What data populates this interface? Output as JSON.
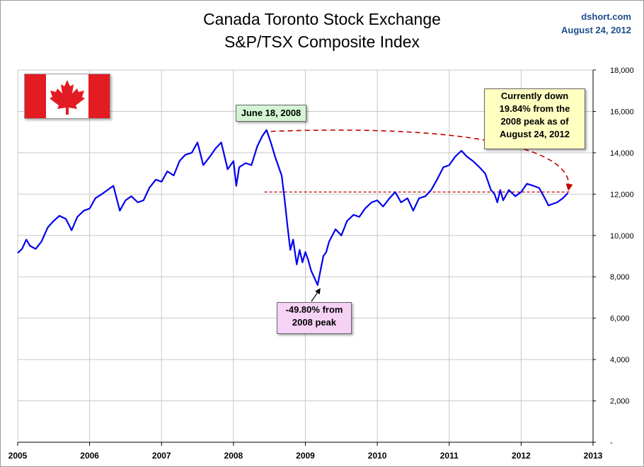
{
  "header": {
    "title_line1": "Canada Toronto Stock Exchange",
    "title_line2": "S&P/TSX Composite Index",
    "credit_site": "dshort.com",
    "credit_date": "August 24, 2012"
  },
  "annotations": {
    "peak_label": "June 18, 2008",
    "trough_label_line1": "-49.80% from",
    "trough_label_line2": "2008 peak",
    "current_line1": "Currently down",
    "current_line2": "19.84% from the",
    "current_line3": "2008 peak as of",
    "current_line4": "August 24, 2012"
  },
  "flag": {
    "name": "canada-flag",
    "red": "#e31b23",
    "white": "#ffffff"
  },
  "colors": {
    "series": "#0000ee",
    "reference": "#c00000",
    "grid": "#c8c8c8"
  },
  "chart_data": {
    "type": "line",
    "title": "Canada Toronto Stock Exchange S&P/TSX Composite Index",
    "xlabel": "",
    "ylabel": "",
    "xlim": [
      2005,
      2013
    ],
    "ylim": [
      0,
      18000
    ],
    "x_ticks": [
      "2005",
      "2006",
      "2007",
      "2008",
      "2009",
      "2010",
      "2011",
      "2012",
      "2013"
    ],
    "y_ticks": [
      "-",
      "2,000",
      "4,000",
      "6,000",
      "8,000",
      "10,000",
      "12,000",
      "14,000",
      "16,000",
      "18,000"
    ],
    "grid": true,
    "legend": "none",
    "series": [
      {
        "values_xy": [
          [
            2005.0,
            9150
          ],
          [
            2005.06,
            9350
          ],
          [
            2005.12,
            9800
          ],
          [
            2005.17,
            9500
          ],
          [
            2005.25,
            9350
          ],
          [
            2005.33,
            9700
          ],
          [
            2005.42,
            10400
          ],
          [
            2005.5,
            10700
          ],
          [
            2005.58,
            10950
          ],
          [
            2005.67,
            10800
          ],
          [
            2005.75,
            10250
          ],
          [
            2005.83,
            10900
          ],
          [
            2005.92,
            11200
          ],
          [
            2006.0,
            11300
          ],
          [
            2006.08,
            11800
          ],
          [
            2006.17,
            12000
          ],
          [
            2006.25,
            12200
          ],
          [
            2006.33,
            12400
          ],
          [
            2006.42,
            11200
          ],
          [
            2006.5,
            11700
          ],
          [
            2006.58,
            11900
          ],
          [
            2006.67,
            11600
          ],
          [
            2006.75,
            11700
          ],
          [
            2006.83,
            12300
          ],
          [
            2006.92,
            12700
          ],
          [
            2007.0,
            12600
          ],
          [
            2007.08,
            13100
          ],
          [
            2007.17,
            12900
          ],
          [
            2007.25,
            13600
          ],
          [
            2007.33,
            13900
          ],
          [
            2007.42,
            14000
          ],
          [
            2007.5,
            14500
          ],
          [
            2007.58,
            13400
          ],
          [
            2007.67,
            13800
          ],
          [
            2007.75,
            14200
          ],
          [
            2007.83,
            14500
          ],
          [
            2007.92,
            13200
          ],
          [
            2008.0,
            13600
          ],
          [
            2008.04,
            12400
          ],
          [
            2008.08,
            13300
          ],
          [
            2008.17,
            13500
          ],
          [
            2008.25,
            13400
          ],
          [
            2008.33,
            14300
          ],
          [
            2008.4,
            14800
          ],
          [
            2008.46,
            15100
          ],
          [
            2008.52,
            14500
          ],
          [
            2008.58,
            13800
          ],
          [
            2008.67,
            12900
          ],
          [
            2008.71,
            11800
          ],
          [
            2008.75,
            10500
          ],
          [
            2008.79,
            9300
          ],
          [
            2008.83,
            9800
          ],
          [
            2008.88,
            8600
          ],
          [
            2008.92,
            9300
          ],
          [
            2008.96,
            8700
          ],
          [
            2009.0,
            9200
          ],
          [
            2009.04,
            8800
          ],
          [
            2009.08,
            8300
          ],
          [
            2009.13,
            7920
          ],
          [
            2009.17,
            7600
          ],
          [
            2009.21,
            8300
          ],
          [
            2009.25,
            9000
          ],
          [
            2009.29,
            9200
          ],
          [
            2009.33,
            9700
          ],
          [
            2009.42,
            10300
          ],
          [
            2009.5,
            10000
          ],
          [
            2009.58,
            10700
          ],
          [
            2009.67,
            11000
          ],
          [
            2009.75,
            10900
          ],
          [
            2009.83,
            11300
          ],
          [
            2009.92,
            11600
          ],
          [
            2010.0,
            11700
          ],
          [
            2010.08,
            11400
          ],
          [
            2010.17,
            11800
          ],
          [
            2010.25,
            12100
          ],
          [
            2010.33,
            11600
          ],
          [
            2010.42,
            11800
          ],
          [
            2010.5,
            11200
          ],
          [
            2010.58,
            11800
          ],
          [
            2010.67,
            11900
          ],
          [
            2010.75,
            12200
          ],
          [
            2010.83,
            12700
          ],
          [
            2010.92,
            13300
          ],
          [
            2011.0,
            13400
          ],
          [
            2011.08,
            13800
          ],
          [
            2011.17,
            14100
          ],
          [
            2011.25,
            13800
          ],
          [
            2011.33,
            13600
          ],
          [
            2011.42,
            13300
          ],
          [
            2011.5,
            13000
          ],
          [
            2011.58,
            12200
          ],
          [
            2011.63,
            12000
          ],
          [
            2011.67,
            11600
          ],
          [
            2011.71,
            12200
          ],
          [
            2011.75,
            11700
          ],
          [
            2011.83,
            12200
          ],
          [
            2011.92,
            11900
          ],
          [
            2012.0,
            12100
          ],
          [
            2012.08,
            12500
          ],
          [
            2012.17,
            12400
          ],
          [
            2012.25,
            12300
          ],
          [
            2012.33,
            11800
          ],
          [
            2012.38,
            11450
          ],
          [
            2012.42,
            11500
          ],
          [
            2012.5,
            11600
          ],
          [
            2012.58,
            11800
          ],
          [
            2012.65,
            12050
          ]
        ]
      }
    ],
    "reference_level": 12100
  }
}
